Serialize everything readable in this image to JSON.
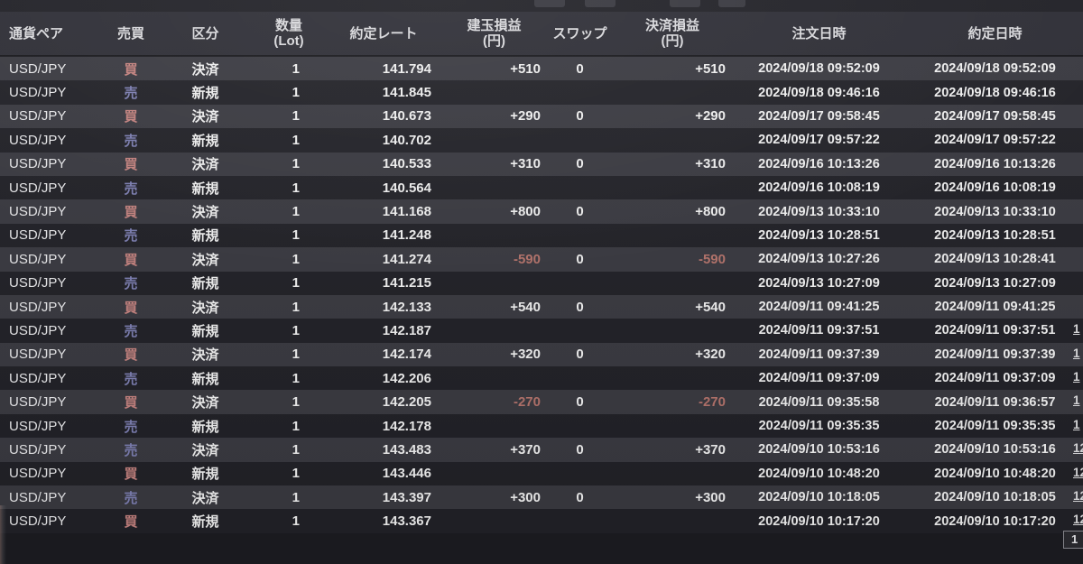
{
  "app": {
    "description_labels": {
      "table_kind": "FX取引履歴"
    }
  },
  "colors": {
    "background": "#1c1c21",
    "header_bg": "#2d2d35",
    "row_light": "#393940",
    "row_dark": "#212127",
    "text": "#efefef",
    "buy_accent": "#c4827f",
    "sell_accent": "#7d7fb2",
    "negative": "#b4736b"
  },
  "table": {
    "headers": {
      "pair": "通貨ペア",
      "side": "売買",
      "kubun": "区分",
      "qty": "数量\n(Lot)",
      "rate": "約定レート",
      "open_pl": "建玉損益\n(円)",
      "swap": "スワップ",
      "close_pl": "決済損益\n(円)",
      "order_dt": "注文日時",
      "exec_dt": "約定日時"
    },
    "rows": [
      {
        "pair": "USD/JPY",
        "side": "買",
        "side_type": "buy",
        "kubun": "決済",
        "qty": "1",
        "rate": "141.794",
        "open_pl": "+510",
        "swap": "0",
        "close_pl": "+510",
        "order_dt": "2024/09/18 09:52:09",
        "exec_dt": "2024/09/18 09:52:09",
        "pl_negative": false,
        "edge": ""
      },
      {
        "pair": "USD/JPY",
        "side": "売",
        "side_type": "sell",
        "kubun": "新規",
        "qty": "1",
        "rate": "141.845",
        "open_pl": "",
        "swap": "",
        "close_pl": "",
        "order_dt": "2024/09/18 09:46:16",
        "exec_dt": "2024/09/18 09:46:16",
        "pl_negative": false,
        "edge": ""
      },
      {
        "pair": "USD/JPY",
        "side": "買",
        "side_type": "buy",
        "kubun": "決済",
        "qty": "1",
        "rate": "140.673",
        "open_pl": "+290",
        "swap": "0",
        "close_pl": "+290",
        "order_dt": "2024/09/17 09:58:45",
        "exec_dt": "2024/09/17 09:58:45",
        "pl_negative": false,
        "edge": ""
      },
      {
        "pair": "USD/JPY",
        "side": "売",
        "side_type": "sell",
        "kubun": "新規",
        "qty": "1",
        "rate": "140.702",
        "open_pl": "",
        "swap": "",
        "close_pl": "",
        "order_dt": "2024/09/17 09:57:22",
        "exec_dt": "2024/09/17 09:57:22",
        "pl_negative": false,
        "edge": ""
      },
      {
        "pair": "USD/JPY",
        "side": "買",
        "side_type": "buy",
        "kubun": "決済",
        "qty": "1",
        "rate": "140.533",
        "open_pl": "+310",
        "swap": "0",
        "close_pl": "+310",
        "order_dt": "2024/09/16 10:13:26",
        "exec_dt": "2024/09/16 10:13:26",
        "pl_negative": false,
        "edge": ""
      },
      {
        "pair": "USD/JPY",
        "side": "売",
        "side_type": "sell",
        "kubun": "新規",
        "qty": "1",
        "rate": "140.564",
        "open_pl": "",
        "swap": "",
        "close_pl": "",
        "order_dt": "2024/09/16 10:08:19",
        "exec_dt": "2024/09/16 10:08:19",
        "pl_negative": false,
        "edge": ""
      },
      {
        "pair": "USD/JPY",
        "side": "買",
        "side_type": "buy",
        "kubun": "決済",
        "qty": "1",
        "rate": "141.168",
        "open_pl": "+800",
        "swap": "0",
        "close_pl": "+800",
        "order_dt": "2024/09/13 10:33:10",
        "exec_dt": "2024/09/13 10:33:10",
        "pl_negative": false,
        "edge": ""
      },
      {
        "pair": "USD/JPY",
        "side": "売",
        "side_type": "sell",
        "kubun": "新規",
        "qty": "1",
        "rate": "141.248",
        "open_pl": "",
        "swap": "",
        "close_pl": "",
        "order_dt": "2024/09/13 10:28:51",
        "exec_dt": "2024/09/13 10:28:51",
        "pl_negative": false,
        "edge": ""
      },
      {
        "pair": "USD/JPY",
        "side": "買",
        "side_type": "buy",
        "kubun": "決済",
        "qty": "1",
        "rate": "141.274",
        "open_pl": "-590",
        "swap": "0",
        "close_pl": "-590",
        "order_dt": "2024/09/13 10:27:26",
        "exec_dt": "2024/09/13 10:28:41",
        "pl_negative": true,
        "edge": ""
      },
      {
        "pair": "USD/JPY",
        "side": "売",
        "side_type": "sell",
        "kubun": "新規",
        "qty": "1",
        "rate": "141.215",
        "open_pl": "",
        "swap": "",
        "close_pl": "",
        "order_dt": "2024/09/13 10:27:09",
        "exec_dt": "2024/09/13 10:27:09",
        "pl_negative": false,
        "edge": ""
      },
      {
        "pair": "USD/JPY",
        "side": "買",
        "side_type": "buy",
        "kubun": "決済",
        "qty": "1",
        "rate": "142.133",
        "open_pl": "+540",
        "swap": "0",
        "close_pl": "+540",
        "order_dt": "2024/09/11 09:41:25",
        "exec_dt": "2024/09/11 09:41:25",
        "pl_negative": false,
        "edge": ""
      },
      {
        "pair": "USD/JPY",
        "side": "売",
        "side_type": "sell",
        "kubun": "新規",
        "qty": "1",
        "rate": "142.187",
        "open_pl": "",
        "swap": "",
        "close_pl": "",
        "order_dt": "2024/09/11 09:37:51",
        "exec_dt": "2024/09/11 09:37:51",
        "pl_negative": false,
        "edge": "1"
      },
      {
        "pair": "USD/JPY",
        "side": "買",
        "side_type": "buy",
        "kubun": "決済",
        "qty": "1",
        "rate": "142.174",
        "open_pl": "+320",
        "swap": "0",
        "close_pl": "+320",
        "order_dt": "2024/09/11 09:37:39",
        "exec_dt": "2024/09/11 09:37:39",
        "pl_negative": false,
        "edge": "1"
      },
      {
        "pair": "USD/JPY",
        "side": "売",
        "side_type": "sell",
        "kubun": "新規",
        "qty": "1",
        "rate": "142.206",
        "open_pl": "",
        "swap": "",
        "close_pl": "",
        "order_dt": "2024/09/11 09:37:09",
        "exec_dt": "2024/09/11 09:37:09",
        "pl_negative": false,
        "edge": "1"
      },
      {
        "pair": "USD/JPY",
        "side": "買",
        "side_type": "buy",
        "kubun": "決済",
        "qty": "1",
        "rate": "142.205",
        "open_pl": "-270",
        "swap": "0",
        "close_pl": "-270",
        "order_dt": "2024/09/11 09:35:58",
        "exec_dt": "2024/09/11 09:36:57",
        "pl_negative": true,
        "edge": "1"
      },
      {
        "pair": "USD/JPY",
        "side": "売",
        "side_type": "sell",
        "kubun": "新規",
        "qty": "1",
        "rate": "142.178",
        "open_pl": "",
        "swap": "",
        "close_pl": "",
        "order_dt": "2024/09/11 09:35:35",
        "exec_dt": "2024/09/11 09:35:35",
        "pl_negative": false,
        "edge": "1"
      },
      {
        "pair": "USD/JPY",
        "side": "売",
        "side_type": "sell",
        "kubun": "決済",
        "qty": "1",
        "rate": "143.483",
        "open_pl": "+370",
        "swap": "0",
        "close_pl": "+370",
        "order_dt": "2024/09/10 10:53:16",
        "exec_dt": "2024/09/10 10:53:16",
        "pl_negative": false,
        "edge": "12"
      },
      {
        "pair": "USD/JPY",
        "side": "買",
        "side_type": "buy",
        "kubun": "新規",
        "qty": "1",
        "rate": "143.446",
        "open_pl": "",
        "swap": "",
        "close_pl": "",
        "order_dt": "2024/09/10 10:48:20",
        "exec_dt": "2024/09/10 10:48:20",
        "pl_negative": false,
        "edge": "12"
      },
      {
        "pair": "USD/JPY",
        "side": "売",
        "side_type": "sell",
        "kubun": "決済",
        "qty": "1",
        "rate": "143.397",
        "open_pl": "+300",
        "swap": "0",
        "close_pl": "+300",
        "order_dt": "2024/09/10 10:18:05",
        "exec_dt": "2024/09/10 10:18:05",
        "pl_negative": false,
        "edge": "12"
      },
      {
        "pair": "USD/JPY",
        "side": "買",
        "side_type": "buy",
        "kubun": "新規",
        "qty": "1",
        "rate": "143.367",
        "open_pl": "",
        "swap": "",
        "close_pl": "",
        "order_dt": "2024/09/10 10:17:20",
        "exec_dt": "2024/09/10 10:17:20",
        "pl_negative": false,
        "edge": "12"
      }
    ]
  },
  "footer": {
    "page_box_value": "1"
  }
}
